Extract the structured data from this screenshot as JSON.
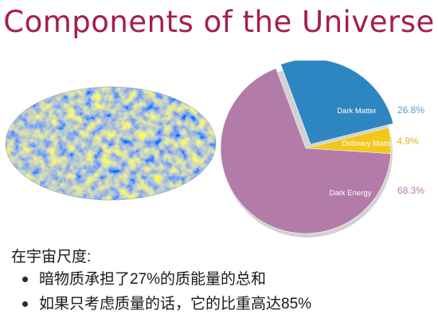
{
  "title": "Components of the Universe",
  "pie": {
    "slices": [
      {
        "label": "Dark Matter",
        "percent_label": "26.8%",
        "value": 26.8,
        "color": "#2e86c1",
        "text_color": "#5d9bc9"
      },
      {
        "label": "Ordinary Matter",
        "percent_label": "4.9%",
        "value": 4.9,
        "color": "#f2c81e",
        "text_color": "#e0b81a"
      },
      {
        "label": "Dark Energy",
        "percent_label": "68.3%",
        "value": 68.3,
        "color": "#b37ca8",
        "text_color": "#b37ca8"
      }
    ]
  },
  "body": {
    "intro": "在宇宙尺度:",
    "bullets": [
      "暗物质承担了27%的质能量的总和",
      "如果只考虑质量的话，它的比重高达85%"
    ]
  },
  "colors": {
    "title": "#a51e4a"
  }
}
